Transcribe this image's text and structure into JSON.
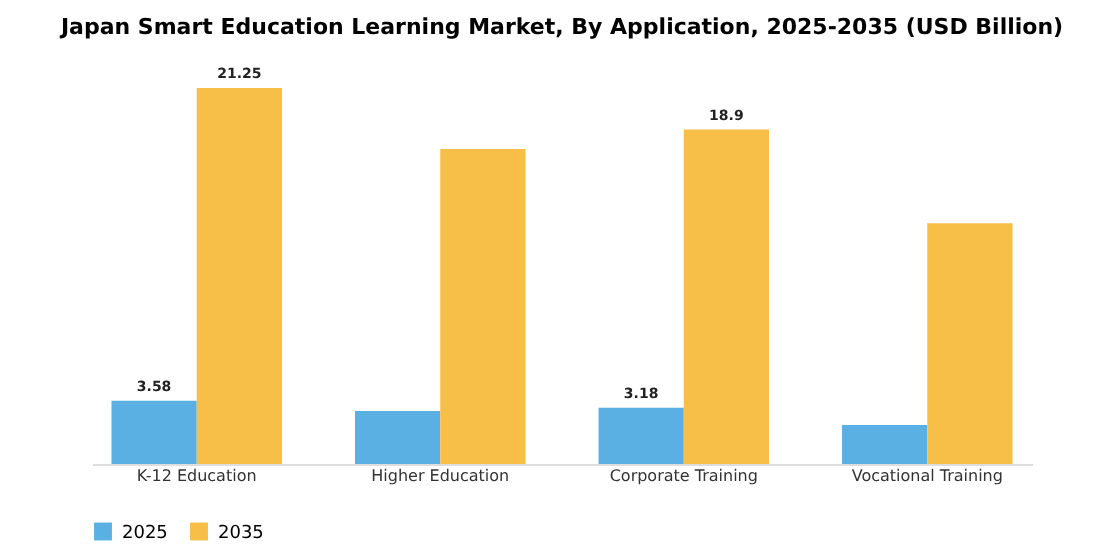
{
  "chart_data": {
    "type": "bar",
    "title": "Japan Smart Education Learning Market, By Application, 2025-2035 (USD Billion)",
    "categories": [
      "K-12 Education",
      "Higher Education",
      "Corporate Training",
      "Vocational Training"
    ],
    "series": [
      {
        "name": "2025",
        "color": "#5aafe3",
        "values": [
          3.58,
          3.0,
          3.18,
          2.2
        ],
        "value_labels": [
          "3.58",
          null,
          "3.18",
          null
        ]
      },
      {
        "name": "2035",
        "color": "#f7be48",
        "values": [
          21.25,
          17.8,
          18.9,
          13.6
        ],
        "value_labels": [
          "21.25",
          null,
          "18.9",
          null
        ]
      }
    ],
    "legend": "bottom",
    "grid": false
  }
}
